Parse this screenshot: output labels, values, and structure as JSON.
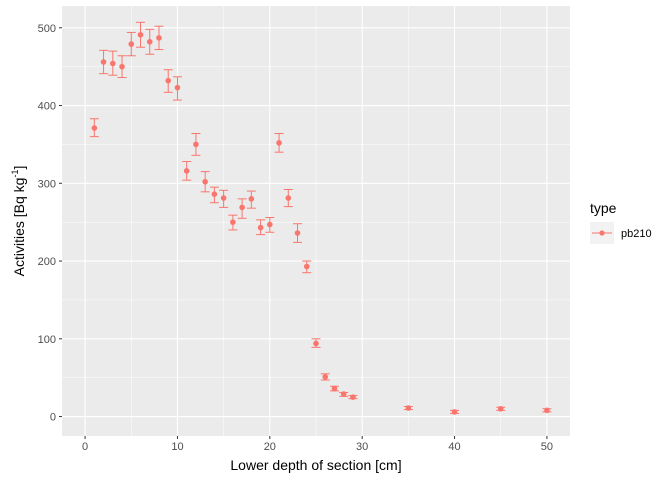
{
  "chart_data": {
    "type": "scatter",
    "title": "",
    "xlabel": "Lower depth of section [cm]",
    "ylabel": {
      "main": "Activities [Bq kg",
      "sup": "-1",
      "close": "]"
    },
    "xlim": [
      -2.5,
      52.5
    ],
    "ylim": [
      -25,
      528
    ],
    "xticks": [
      0,
      10,
      20,
      30,
      40,
      50
    ],
    "yticks": [
      0,
      100,
      200,
      300,
      400,
      500
    ],
    "grid": true,
    "legend": {
      "title": "type",
      "position": "right",
      "entries": [
        "pb210"
      ]
    },
    "colors": {
      "series": "#F8766D",
      "panel": "#EBEBEB",
      "grid_major": "#FFFFFF"
    },
    "series": [
      {
        "name": "pb210",
        "points": [
          {
            "x": 1,
            "y": 371,
            "lo": 360,
            "hi": 383
          },
          {
            "x": 2,
            "y": 456,
            "lo": 441,
            "hi": 471
          },
          {
            "x": 3,
            "y": 454,
            "lo": 439,
            "hi": 470
          },
          {
            "x": 4,
            "y": 450,
            "lo": 436,
            "hi": 464
          },
          {
            "x": 5,
            "y": 479,
            "lo": 464,
            "hi": 494
          },
          {
            "x": 6,
            "y": 491,
            "lo": 475,
            "hi": 507
          },
          {
            "x": 7,
            "y": 482,
            "lo": 466,
            "hi": 498
          },
          {
            "x": 8,
            "y": 487,
            "lo": 472,
            "hi": 502
          },
          {
            "x": 9,
            "y": 432,
            "lo": 417,
            "hi": 446
          },
          {
            "x": 10,
            "y": 423,
            "lo": 407,
            "hi": 437
          },
          {
            "x": 11,
            "y": 316,
            "lo": 304,
            "hi": 328
          },
          {
            "x": 12,
            "y": 350,
            "lo": 336,
            "hi": 364
          },
          {
            "x": 13,
            "y": 302,
            "lo": 289,
            "hi": 315
          },
          {
            "x": 14,
            "y": 286,
            "lo": 275,
            "hi": 295
          },
          {
            "x": 15,
            "y": 281,
            "lo": 269,
            "hi": 291
          },
          {
            "x": 16,
            "y": 250,
            "lo": 240,
            "hi": 259
          },
          {
            "x": 17,
            "y": 269,
            "lo": 255,
            "hi": 280
          },
          {
            "x": 18,
            "y": 280,
            "lo": 268,
            "hi": 290
          },
          {
            "x": 19,
            "y": 243,
            "lo": 234,
            "hi": 253
          },
          {
            "x": 20,
            "y": 247,
            "lo": 237,
            "hi": 256
          },
          {
            "x": 21,
            "y": 352,
            "lo": 340,
            "hi": 364
          },
          {
            "x": 22,
            "y": 281,
            "lo": 270,
            "hi": 292
          },
          {
            "x": 23,
            "y": 236,
            "lo": 224,
            "hi": 248
          },
          {
            "x": 24,
            "y": 193,
            "lo": 185,
            "hi": 200
          },
          {
            "x": 25,
            "y": 94,
            "lo": 89,
            "hi": 100
          },
          {
            "x": 26,
            "y": 51,
            "lo": 47,
            "hi": 55
          },
          {
            "x": 27,
            "y": 36,
            "lo": 33,
            "hi": 39
          },
          {
            "x": 28,
            "y": 29,
            "lo": 26,
            "hi": 31
          },
          {
            "x": 29,
            "y": 25,
            "lo": 23,
            "hi": 27
          },
          {
            "x": 35,
            "y": 11,
            "lo": 9,
            "hi": 13
          },
          {
            "x": 40,
            "y": 6,
            "lo": 4,
            "hi": 8
          },
          {
            "x": 45,
            "y": 10,
            "lo": 8,
            "hi": 12
          },
          {
            "x": 50,
            "y": 8,
            "lo": 6,
            "hi": 10
          }
        ]
      }
    ]
  }
}
